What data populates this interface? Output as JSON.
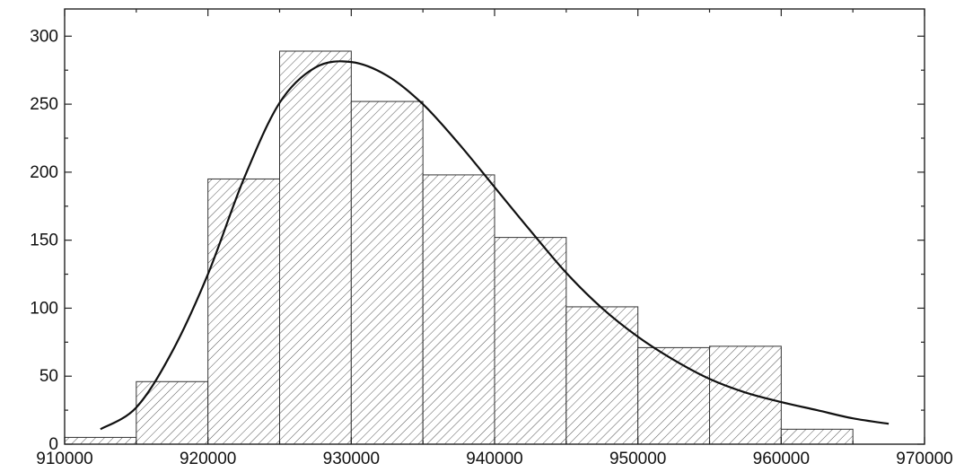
{
  "chart_data": {
    "type": "bar",
    "title": "",
    "xlabel": "",
    "ylabel": "",
    "xlim": [
      910000,
      970000
    ],
    "ylim": [
      0,
      320
    ],
    "x_ticks": [
      910000,
      920000,
      930000,
      940000,
      950000,
      960000,
      970000
    ],
    "x_tick_labels": [
      "910000",
      "920000",
      "930000",
      "940000",
      "950000",
      "960000",
      "970000"
    ],
    "y_ticks": [
      0,
      50,
      100,
      150,
      200,
      250,
      300
    ],
    "y_tick_labels": [
      "0",
      "50",
      "100",
      "150",
      "200",
      "250",
      "300"
    ],
    "bins": [
      {
        "start": 910000,
        "end": 915000,
        "value": 5
      },
      {
        "start": 915000,
        "end": 920000,
        "value": 46
      },
      {
        "start": 920000,
        "end": 925000,
        "value": 195
      },
      {
        "start": 925000,
        "end": 930000,
        "value": 289
      },
      {
        "start": 930000,
        "end": 935000,
        "value": 252
      },
      {
        "start": 935000,
        "end": 940000,
        "value": 198
      },
      {
        "start": 940000,
        "end": 945000,
        "value": 152
      },
      {
        "start": 945000,
        "end": 950000,
        "value": 101
      },
      {
        "start": 950000,
        "end": 955000,
        "value": 71
      },
      {
        "start": 955000,
        "end": 960000,
        "value": 72
      },
      {
        "start": 960000,
        "end": 965000,
        "value": 11
      }
    ],
    "fit_curve": {
      "x": [
        912500,
        915000,
        917500,
        920000,
        922500,
        925000,
        927500,
        930000,
        932500,
        935000,
        937500,
        940000,
        942500,
        945000,
        947500,
        950000,
        952500,
        955000,
        957500,
        960000,
        962500,
        965000,
        967500
      ],
      "y": [
        11,
        27,
        68,
        125,
        195,
        251,
        277,
        281,
        271,
        250,
        221,
        189,
        157,
        126,
        100,
        79,
        62,
        48,
        38,
        31,
        25,
        19,
        15
      ]
    },
    "bar_fill": "hatched",
    "grid": false,
    "legend": "none"
  }
}
